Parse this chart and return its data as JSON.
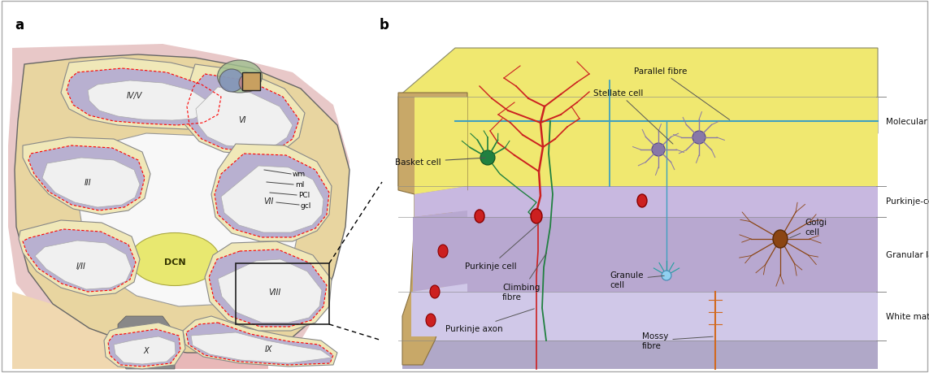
{
  "fig_width": 11.43,
  "fig_height": 4.6,
  "dpi": 100,
  "bg_color": "#ffffff",
  "colors": {
    "outer_cortex": "#e8d5a0",
    "lobule_cream": "#f0e8b8",
    "lobule_purple": "#b8b0d0",
    "lobule_white": "#f0f0f0",
    "dcn_yellow": "#e8e870",
    "gray_stem": "#888888",
    "pink_bg": "#e8c8c8",
    "peach_bg": "#f0d8b0",
    "b_molecular": "#f0e870",
    "b_purkinje_layer": "#c8b8e0",
    "b_granular": "#b8a8d0",
    "b_white": "#d0c8e8",
    "b_bottom": "#b0a8c8",
    "b_brown_fold": "#c8a868",
    "parallel_fibre": "#40a0c0",
    "red_cell": "#cc2020",
    "green_cell": "#208040",
    "golgi_brown": "#8b4513",
    "mossy_orange": "#d2691e",
    "stellate_purple": "#8878a8",
    "text_color": "#111111",
    "line_color": "#555555"
  },
  "golgi_dendrite_lengths": [
    38,
    42,
    36,
    40,
    35,
    44,
    37,
    41,
    36,
    43
  ],
  "golgi_dendrite_angles": [
    -60,
    -30,
    0,
    30,
    60,
    90,
    120,
    150,
    180,
    210
  ]
}
